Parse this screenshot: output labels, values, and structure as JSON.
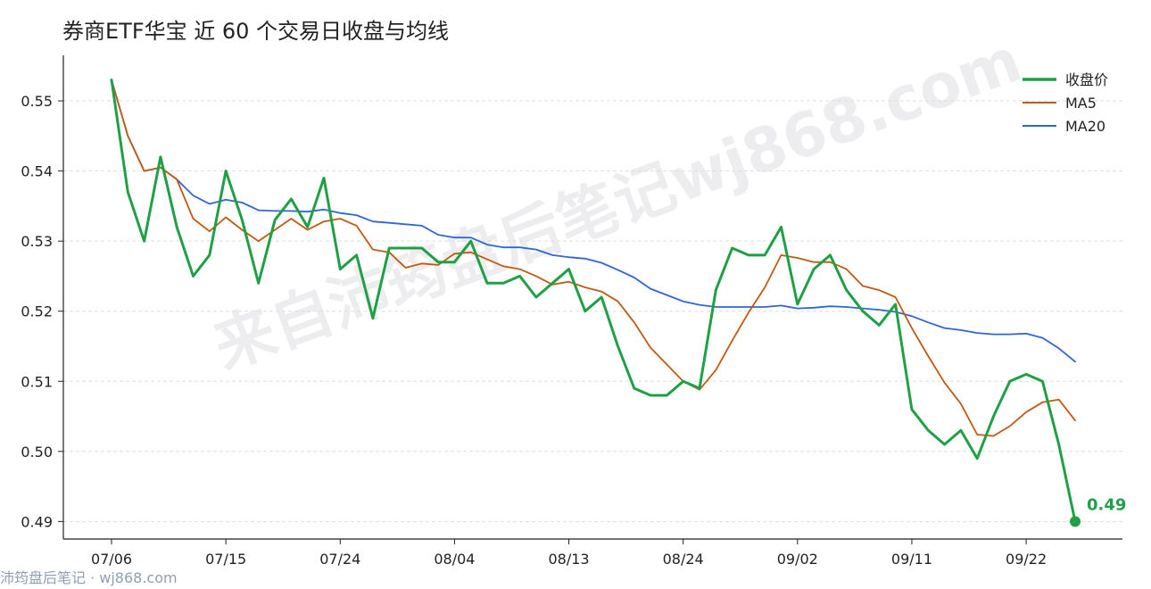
{
  "title": "券商ETF华宝 近 60 个交易日收盘与均线",
  "footer": "沛筠盘后笔记 · wj868.com",
  "watermark": "来自沛筠盘后笔记wj868.com",
  "colors": {
    "close": "#1fa045",
    "ma5": "#c05a12",
    "ma20": "#2f66d6",
    "grid": "#dddddd",
    "axis": "#222222"
  },
  "chart_data": {
    "type": "line",
    "x_ticks": [
      "07/06",
      "07/15",
      "07/24",
      "08/04",
      "08/13",
      "08/24",
      "09/02",
      "09/11",
      "09/22"
    ],
    "x_tick_indices": [
      0,
      7,
      14,
      21,
      28,
      35,
      42,
      49,
      56
    ],
    "ylim": [
      0.4875,
      0.5565
    ],
    "y_ticks": [
      0.49,
      0.5,
      0.51,
      0.52,
      0.53,
      0.54,
      0.55
    ],
    "y_tick_labels": [
      "0.49",
      "0.50",
      "0.51",
      "0.52",
      "0.53",
      "0.54",
      "0.55"
    ],
    "grid": "horizontal dashed",
    "legend_position": "top-right",
    "last_label": "0.49",
    "series": [
      {
        "name": "收盘价",
        "key": "close",
        "values": [
          0.553,
          0.537,
          0.53,
          0.542,
          0.532,
          0.525,
          0.528,
          0.54,
          0.533,
          0.524,
          0.533,
          0.536,
          0.532,
          0.539,
          0.526,
          0.528,
          0.519,
          0.529,
          0.529,
          0.529,
          0.527,
          0.527,
          0.53,
          0.524,
          0.524,
          0.525,
          0.522,
          0.524,
          0.526,
          0.52,
          0.522,
          0.515,
          0.509,
          0.508,
          0.508,
          0.51,
          0.509,
          0.523,
          0.529,
          0.528,
          0.528,
          0.532,
          0.521,
          0.526,
          0.528,
          0.523,
          0.52,
          0.518,
          0.521,
          0.506,
          0.503,
          0.501,
          0.503,
          0.499,
          0.505,
          0.51,
          0.511,
          0.51,
          0.501,
          0.49
        ]
      },
      {
        "name": "MA5",
        "key": "ma5",
        "values": [
          0.553,
          0.545,
          0.54,
          0.5405,
          0.5388,
          0.5332,
          0.5314,
          0.5334,
          0.5316,
          0.53,
          0.5316,
          0.5332,
          0.5316,
          0.5328,
          0.5332,
          0.5322,
          0.5288,
          0.5284,
          0.5262,
          0.5268,
          0.5266,
          0.5282,
          0.5284,
          0.5274,
          0.5264,
          0.526,
          0.525,
          0.5238,
          0.5242,
          0.5234,
          0.5228,
          0.5214,
          0.5184,
          0.5148,
          0.5124,
          0.51,
          0.5088,
          0.5116,
          0.5158,
          0.5198,
          0.5234,
          0.528,
          0.5276,
          0.527,
          0.527,
          0.526,
          0.5236,
          0.523,
          0.522,
          0.5176,
          0.5136,
          0.5098,
          0.5068,
          0.5024,
          0.5022,
          0.5036,
          0.5056,
          0.507,
          0.5074,
          0.5044
        ]
      },
      {
        "name": "MA20",
        "key": "ma20",
        "values": [
          0.553,
          0.545,
          0.54,
          0.5405,
          0.5388,
          0.5365,
          0.5353,
          0.5359,
          0.5355,
          0.5344,
          0.5343,
          0.5343,
          0.5342,
          0.5345,
          0.534,
          0.5337,
          0.5328,
          0.5326,
          0.5324,
          0.5322,
          0.5309,
          0.5305,
          0.5305,
          0.5295,
          0.5291,
          0.5291,
          0.5288,
          0.528,
          0.5277,
          0.5275,
          0.5269,
          0.5259,
          0.5248,
          0.5232,
          0.5223,
          0.5214,
          0.5209,
          0.5206,
          0.5206,
          0.5206,
          0.5206,
          0.5208,
          0.5204,
          0.5205,
          0.5207,
          0.5206,
          0.5204,
          0.5202,
          0.5199,
          0.5193,
          0.5184,
          0.5176,
          0.5173,
          0.5169,
          0.5167,
          0.5167,
          0.5168,
          0.5162,
          0.5147,
          0.5128
        ]
      }
    ]
  }
}
